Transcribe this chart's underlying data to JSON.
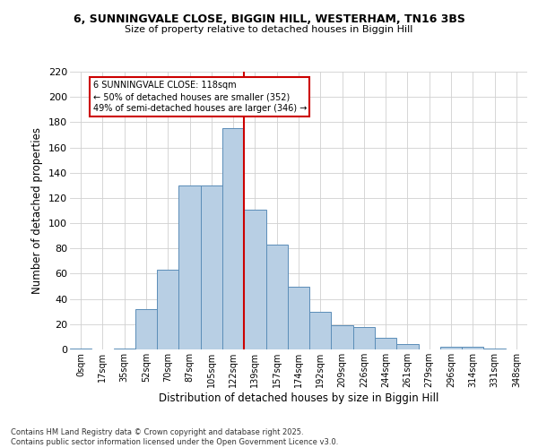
{
  "title_line1": "6, SUNNINGVALE CLOSE, BIGGIN HILL, WESTERHAM, TN16 3BS",
  "title_line2": "Size of property relative to detached houses in Biggin Hill",
  "xlabel": "Distribution of detached houses by size in Biggin Hill",
  "ylabel": "Number of detached properties",
  "bar_values": [
    1,
    0,
    1,
    32,
    63,
    130,
    130,
    175,
    111,
    83,
    50,
    30,
    19,
    18,
    9,
    4,
    0,
    2,
    2,
    1,
    0
  ],
  "bin_labels": [
    "0sqm",
    "17sqm",
    "35sqm",
    "52sqm",
    "70sqm",
    "87sqm",
    "105sqm",
    "122sqm",
    "139sqm",
    "157sqm",
    "174sqm",
    "192sqm",
    "209sqm",
    "226sqm",
    "244sqm",
    "261sqm",
    "279sqm",
    "296sqm",
    "314sqm",
    "331sqm",
    "348sqm"
  ],
  "bar_color": "#b8cfe4",
  "bar_edge_color": "#5b8db8",
  "background_color": "#ffffff",
  "grid_color": "#d0d0d0",
  "vline_color": "#cc0000",
  "annotation_title": "6 SUNNINGVALE CLOSE: 118sqm",
  "annotation_line1": "← 50% of detached houses are smaller (352)",
  "annotation_line2": "49% of semi-detached houses are larger (346) →",
  "annotation_box_color": "#cc0000",
  "ylim": [
    0,
    220
  ],
  "yticks": [
    0,
    20,
    40,
    60,
    80,
    100,
    120,
    140,
    160,
    180,
    200,
    220
  ],
  "footer_line1": "Contains HM Land Registry data © Crown copyright and database right 2025.",
  "footer_line2": "Contains public sector information licensed under the Open Government Licence v3.0."
}
